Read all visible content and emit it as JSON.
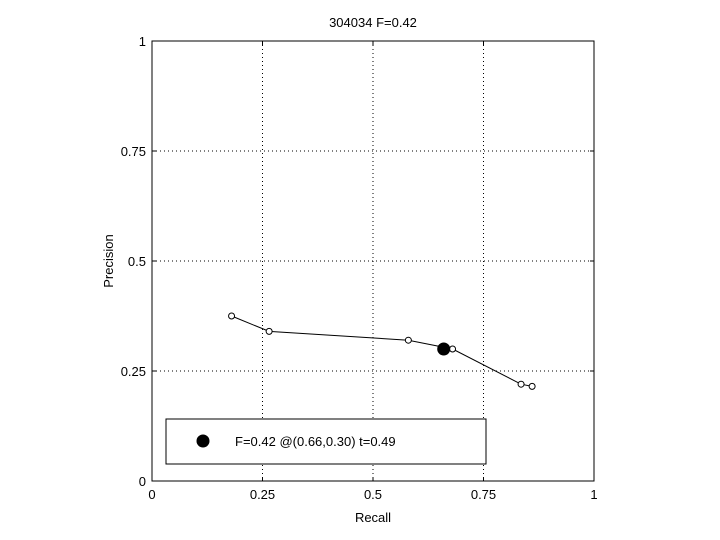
{
  "chart_data": {
    "type": "line",
    "title": "304034 F=0.42",
    "xlabel": "Recall",
    "ylabel": "Precision",
    "xlim": [
      0,
      1
    ],
    "ylim": [
      0,
      1
    ],
    "xticks": [
      "0",
      "0.25",
      "0.5",
      "0.75",
      "1"
    ],
    "yticks": [
      "0",
      "0.25",
      "0.5",
      "0.75",
      "1"
    ],
    "grid": true,
    "series": [
      {
        "marker": "open-circle",
        "color": "#000000",
        "x": [
          0.18,
          0.265,
          0.58,
          0.68,
          0.835,
          0.86
        ],
        "y": [
          0.375,
          0.34,
          0.32,
          0.3,
          0.22,
          0.215
        ]
      }
    ],
    "highlight": {
      "x": 0.66,
      "y": 0.3,
      "marker": "filled-circle"
    },
    "legend": {
      "placement": "bottom-left",
      "entries": [
        {
          "label": "F=0.42 @(0.66,0.30) t=0.49",
          "marker": "filled-circle"
        }
      ]
    }
  }
}
